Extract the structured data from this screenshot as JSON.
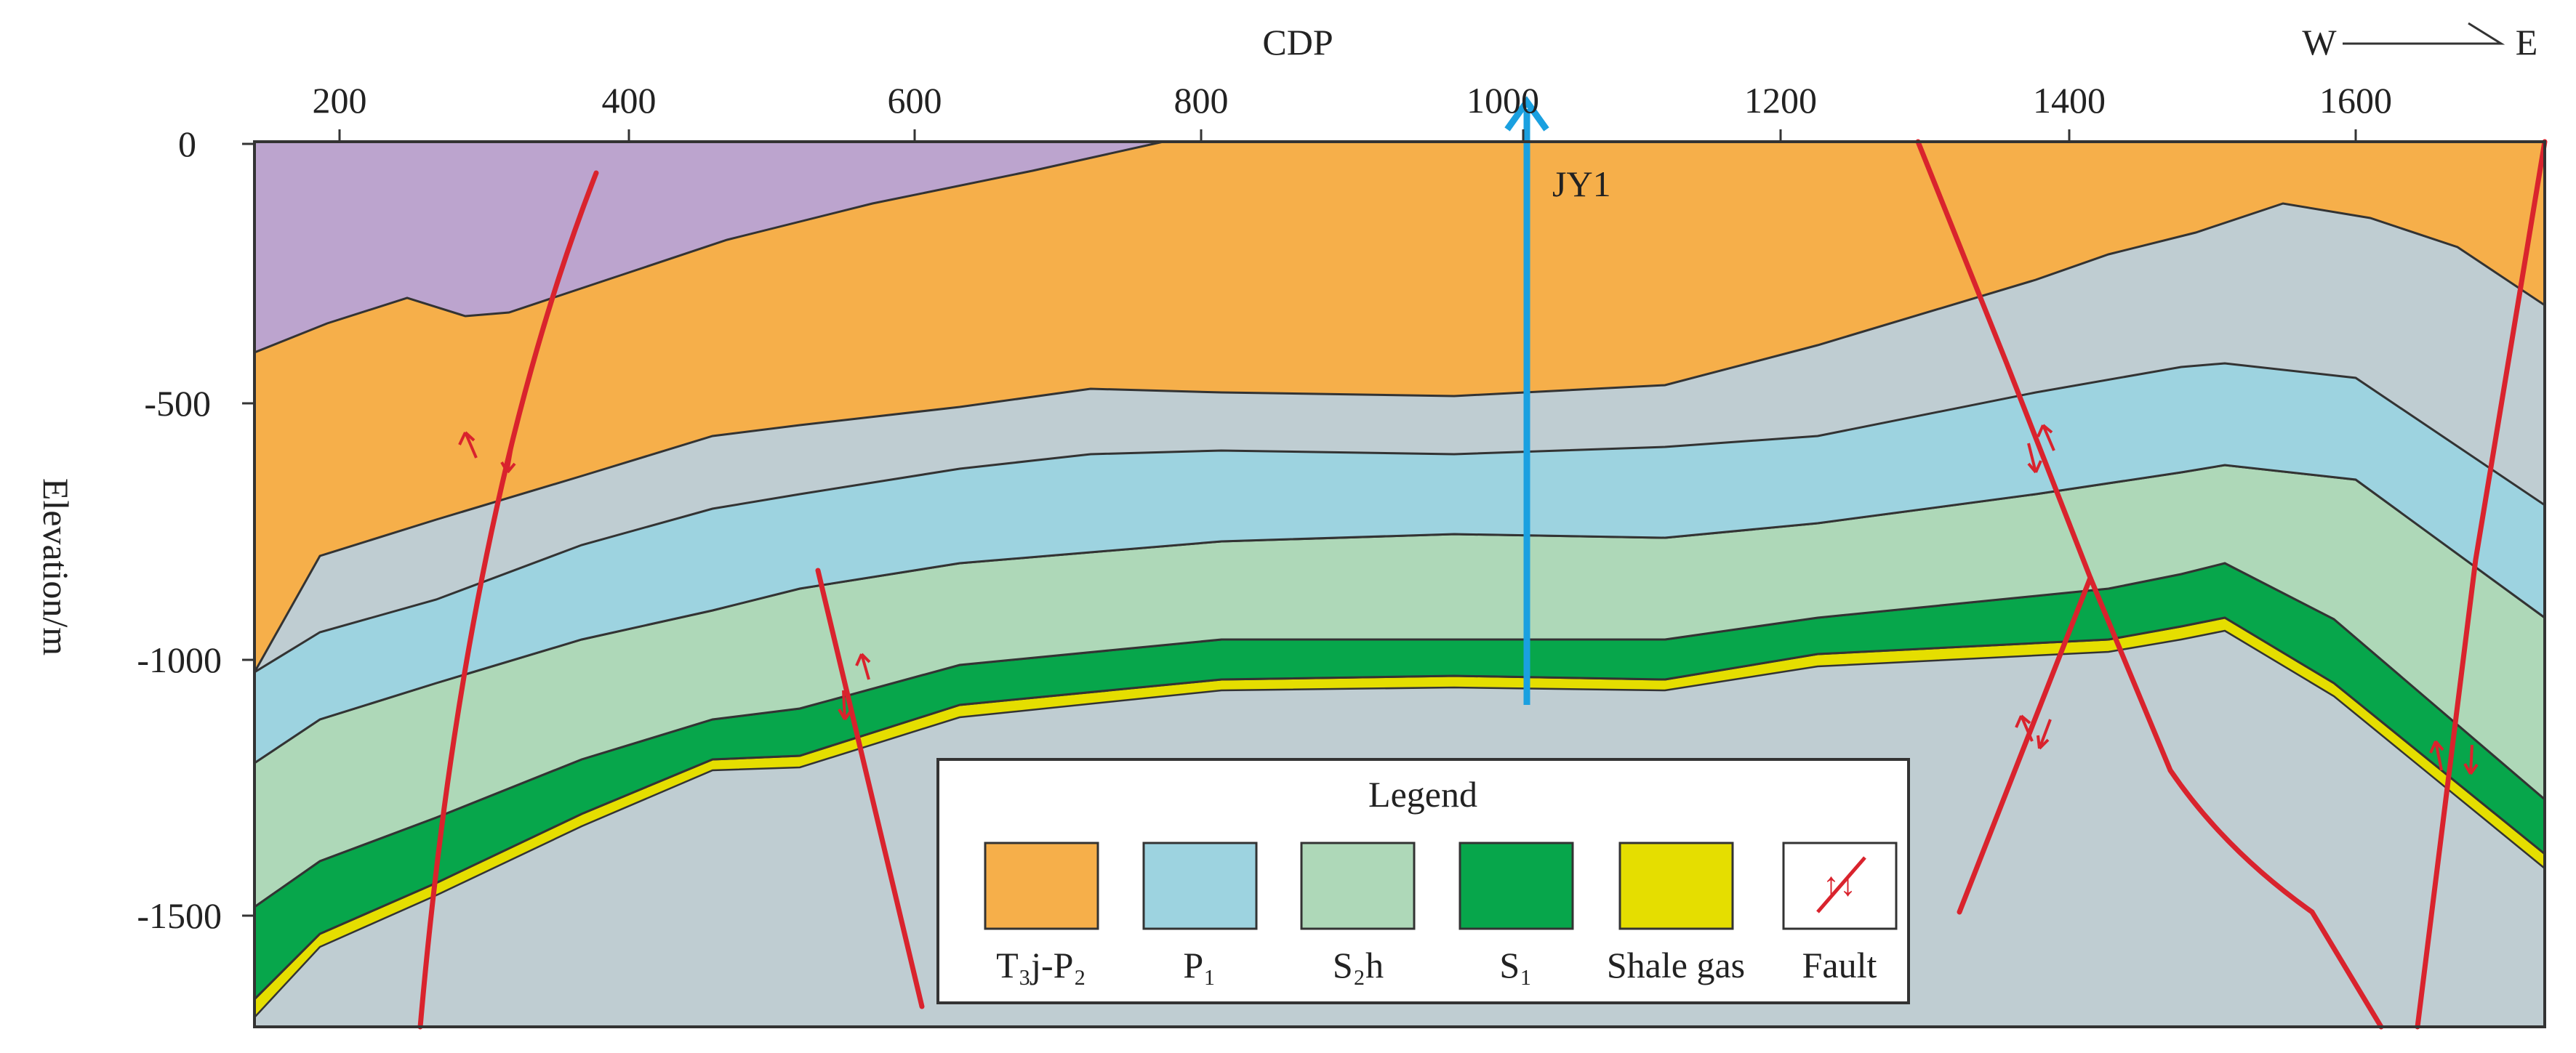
{
  "figure": {
    "x_axis_title": "CDP",
    "y_axis_title": "Elevation/m",
    "x_ticks": [
      "200",
      "400",
      "600",
      "800",
      "1000",
      "1200",
      "1400",
      "1600"
    ],
    "y_ticks": [
      "0",
      "-500",
      "-1000",
      "-1500"
    ],
    "compass": {
      "west": "W",
      "east": "E"
    },
    "well": {
      "name": "JY1"
    },
    "fault_symbol": "↑↓",
    "legend": {
      "title": "Legend",
      "items": [
        {
          "label": "T₃j-P₂",
          "color": "#F6AF4A"
        },
        {
          "label": "P₁",
          "color": "#9DD3E0"
        },
        {
          "label": "S₂h",
          "color": "#AED8B8"
        },
        {
          "label": "S₁",
          "color": "#07A64B"
        },
        {
          "label": "Shale gas",
          "color": "#E5DE00"
        },
        {
          "label": "Fault",
          "color": "#D9232D"
        }
      ]
    },
    "colors": {
      "upper_unit": "#BCA4CE",
      "basement": "#BFCDD2",
      "boundary": "#333333",
      "fault": "#D9232D",
      "well": "#1AA0E0"
    }
  }
}
